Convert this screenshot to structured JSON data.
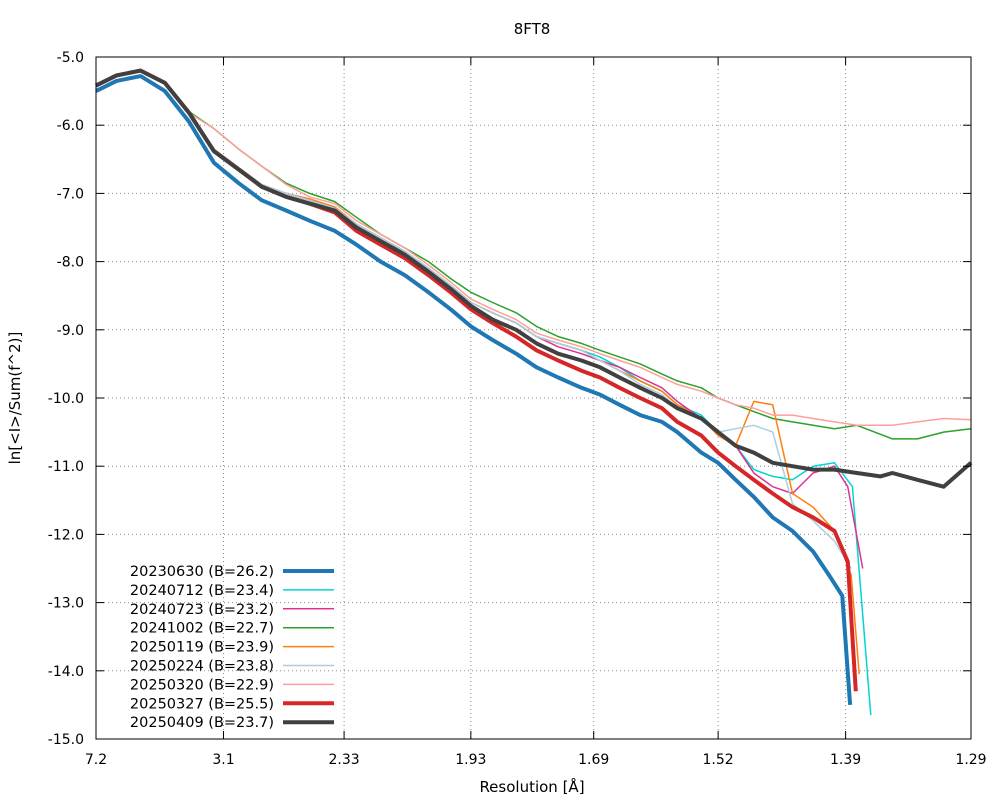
{
  "chart_data": {
    "type": "line",
    "title": "8FT8",
    "xlabel": "Resolution [Å]",
    "ylabel": "ln[<I>/Sum(f^2)]",
    "x_scale": "1/d^2",
    "xlim": [
      7.2,
      1.29
    ],
    "ylim": [
      -15.0,
      -5.0
    ],
    "x_ticks": [
      7.2,
      3.1,
      2.33,
      1.93,
      1.69,
      1.52,
      1.39,
      1.29
    ],
    "x_tick_labels": [
      "7.2",
      "3.1",
      "2.33",
      "1.93",
      "1.69",
      "1.52",
      "1.39",
      "1.29"
    ],
    "y_ticks": [
      -5,
      -6,
      -7,
      -8,
      -9,
      -10,
      -11,
      -12,
      -13,
      -14,
      -15
    ],
    "y_tick_labels": [
      "-5.0",
      "-6.0",
      "-7.0",
      "-8.0",
      "-9.0",
      "-10.0",
      "-11.0",
      "-12.0",
      "-13.0",
      "-14.0",
      "-15.0"
    ],
    "grid": true,
    "legend_position": "bottom-left",
    "series": [
      {
        "name": "20230630 (B=26.2)",
        "color": "#1f77b4",
        "width": 4,
        "x": [
          7.2,
          5.51,
          4.52,
          3.92,
          3.51,
          3.2,
          2.96,
          2.78,
          2.62,
          2.49,
          2.37,
          2.28,
          2.19,
          2.11,
          2.04,
          1.98,
          1.93,
          1.88,
          1.83,
          1.79,
          1.75,
          1.71,
          1.68,
          1.65,
          1.62,
          1.59,
          1.57,
          1.54,
          1.52,
          1.5,
          1.48,
          1.46,
          1.44,
          1.42,
          1.405,
          1.393,
          1.386
        ],
        "y": [
          -5.5,
          -5.35,
          -5.28,
          -5.5,
          -5.95,
          -6.55,
          -6.85,
          -7.1,
          -7.25,
          -7.4,
          -7.55,
          -7.75,
          -8.0,
          -8.2,
          -8.45,
          -8.7,
          -8.95,
          -9.15,
          -9.35,
          -9.55,
          -9.7,
          -9.85,
          -9.95,
          -10.1,
          -10.25,
          -10.35,
          -10.5,
          -10.8,
          -10.95,
          -11.2,
          -11.45,
          -11.75,
          -11.95,
          -12.25,
          -12.6,
          -12.9,
          -14.5
        ]
      },
      {
        "name": "20240712 (B=23.4)",
        "color": "#00d5d5",
        "width": 1.5,
        "x": [
          7.2,
          5.51,
          4.52,
          3.92,
          3.51,
          3.2,
          2.96,
          2.78,
          2.62,
          2.49,
          2.37,
          2.28,
          2.19,
          2.11,
          2.04,
          1.98,
          1.93,
          1.88,
          1.83,
          1.79,
          1.75,
          1.71,
          1.68,
          1.65,
          1.62,
          1.59,
          1.57,
          1.54,
          1.52,
          1.5,
          1.48,
          1.46,
          1.44,
          1.42,
          1.4,
          1.384,
          1.368
        ],
        "y": [
          -5.42,
          -5.27,
          -5.2,
          -5.38,
          -5.82,
          -6.38,
          -6.65,
          -6.9,
          -7.0,
          -7.1,
          -7.25,
          -7.5,
          -7.7,
          -7.85,
          -8.1,
          -8.35,
          -8.6,
          -8.75,
          -8.9,
          -9.1,
          -9.2,
          -9.3,
          -9.4,
          -9.55,
          -9.75,
          -9.9,
          -10.1,
          -10.25,
          -10.5,
          -10.7,
          -11.05,
          -11.15,
          -11.2,
          -11.0,
          -10.95,
          -11.3,
          -14.65
        ]
      },
      {
        "name": "20240723 (B=23.2)",
        "color": "#e0318f",
        "width": 1.5,
        "x": [
          7.2,
          5.51,
          4.52,
          3.92,
          3.51,
          3.2,
          2.96,
          2.78,
          2.62,
          2.49,
          2.37,
          2.28,
          2.19,
          2.11,
          2.04,
          1.98,
          1.93,
          1.88,
          1.83,
          1.79,
          1.75,
          1.71,
          1.68,
          1.65,
          1.62,
          1.59,
          1.57,
          1.54,
          1.52,
          1.5,
          1.48,
          1.46,
          1.44,
          1.42,
          1.4,
          1.388,
          1.375
        ],
        "y": [
          -5.42,
          -5.27,
          -5.2,
          -5.38,
          -5.82,
          -6.38,
          -6.65,
          -6.9,
          -7.0,
          -7.1,
          -7.22,
          -7.45,
          -7.65,
          -7.85,
          -8.1,
          -8.35,
          -8.6,
          -8.75,
          -8.9,
          -9.1,
          -9.25,
          -9.35,
          -9.45,
          -9.55,
          -9.7,
          -9.85,
          -10.05,
          -10.3,
          -10.5,
          -10.7,
          -11.1,
          -11.3,
          -11.4,
          -11.1,
          -11.0,
          -11.3,
          -12.5
        ]
      },
      {
        "name": "20241002 (B=22.7)",
        "color": "#2ca02c",
        "width": 1.5,
        "x": [
          7.2,
          5.51,
          4.52,
          3.92,
          3.51,
          3.2,
          2.96,
          2.78,
          2.62,
          2.49,
          2.37,
          2.28,
          2.19,
          2.11,
          2.04,
          1.98,
          1.93,
          1.88,
          1.83,
          1.79,
          1.75,
          1.71,
          1.68,
          1.65,
          1.62,
          1.59,
          1.57,
          1.54,
          1.52,
          1.5,
          1.48,
          1.46,
          1.44,
          1.42,
          1.4,
          1.38,
          1.35,
          1.33,
          1.31,
          1.29
        ],
        "y": [
          -5.42,
          -5.27,
          -5.2,
          -5.37,
          -5.8,
          -6.05,
          -6.35,
          -6.6,
          -6.85,
          -7.0,
          -7.12,
          -7.35,
          -7.6,
          -7.8,
          -8.0,
          -8.25,
          -8.45,
          -8.6,
          -8.75,
          -8.95,
          -9.1,
          -9.2,
          -9.3,
          -9.4,
          -9.5,
          -9.65,
          -9.75,
          -9.85,
          -10.0,
          -10.1,
          -10.2,
          -10.3,
          -10.35,
          -10.4,
          -10.45,
          -10.4,
          -10.6,
          -10.6,
          -10.5,
          -10.45
        ]
      },
      {
        "name": "20250119 (B=23.9)",
        "color": "#ff7f0e",
        "width": 1.5,
        "x": [
          7.2,
          5.51,
          4.52,
          3.92,
          3.51,
          3.2,
          2.96,
          2.78,
          2.62,
          2.49,
          2.37,
          2.28,
          2.19,
          2.11,
          2.04,
          1.98,
          1.93,
          1.88,
          1.83,
          1.79,
          1.75,
          1.71,
          1.68,
          1.65,
          1.62,
          1.59,
          1.57,
          1.54,
          1.52,
          1.5,
          1.48,
          1.46,
          1.44,
          1.42,
          1.4,
          1.385,
          1.378
        ],
        "y": [
          -5.42,
          -5.27,
          -5.2,
          -5.38,
          -5.82,
          -6.35,
          -6.62,
          -6.87,
          -7.0,
          -7.08,
          -7.2,
          -7.45,
          -7.65,
          -7.85,
          -8.1,
          -8.35,
          -8.6,
          -8.75,
          -8.9,
          -9.1,
          -9.2,
          -9.3,
          -9.45,
          -9.6,
          -9.75,
          -9.9,
          -10.1,
          -10.3,
          -10.55,
          -10.7,
          -10.05,
          -10.1,
          -11.4,
          -11.6,
          -11.95,
          -12.6,
          -14.05
        ]
      },
      {
        "name": "20250224 (B=23.8)",
        "color": "#a9cfe0",
        "width": 1.5,
        "x": [
          7.2,
          5.51,
          4.52,
          3.92,
          3.51,
          3.2,
          2.96,
          2.78,
          2.62,
          2.49,
          2.37,
          2.28,
          2.19,
          2.11,
          2.04,
          1.98,
          1.93,
          1.88,
          1.83,
          1.79,
          1.75,
          1.71,
          1.68,
          1.65,
          1.62,
          1.59,
          1.57,
          1.54,
          1.52,
          1.5,
          1.48,
          1.46,
          1.44,
          1.42,
          1.4,
          1.385
        ],
        "y": [
          -5.42,
          -5.27,
          -5.2,
          -5.38,
          -5.82,
          -6.35,
          -6.62,
          -6.87,
          -7.0,
          -7.1,
          -7.22,
          -7.45,
          -7.65,
          -7.85,
          -8.1,
          -8.35,
          -8.6,
          -8.75,
          -8.9,
          -9.1,
          -9.2,
          -9.3,
          -9.45,
          -9.6,
          -9.8,
          -9.95,
          -10.15,
          -10.3,
          -10.5,
          -10.45,
          -10.4,
          -10.5,
          -11.55,
          -11.8,
          -12.1,
          -12.5
        ]
      },
      {
        "name": "20250320 (B=22.9)",
        "color": "#ff9f9a",
        "width": 1.5,
        "x": [
          7.2,
          5.51,
          4.52,
          3.92,
          3.51,
          3.2,
          2.96,
          2.78,
          2.62,
          2.49,
          2.37,
          2.28,
          2.19,
          2.11,
          2.04,
          1.98,
          1.93,
          1.88,
          1.83,
          1.79,
          1.75,
          1.71,
          1.68,
          1.65,
          1.62,
          1.59,
          1.57,
          1.54,
          1.52,
          1.5,
          1.48,
          1.46,
          1.44,
          1.42,
          1.4,
          1.38,
          1.35,
          1.33,
          1.31,
          1.29
        ],
        "y": [
          -5.42,
          -5.27,
          -5.2,
          -5.38,
          -5.82,
          -6.05,
          -6.35,
          -6.6,
          -6.87,
          -7.05,
          -7.15,
          -7.4,
          -7.6,
          -7.8,
          -8.05,
          -8.3,
          -8.55,
          -8.7,
          -8.85,
          -9.05,
          -9.15,
          -9.25,
          -9.35,
          -9.45,
          -9.55,
          -9.7,
          -9.8,
          -9.9,
          -10.0,
          -10.1,
          -10.15,
          -10.25,
          -10.25,
          -10.3,
          -10.35,
          -10.4,
          -10.4,
          -10.35,
          -10.3,
          -10.32
        ]
      },
      {
        "name": "20250327 (B=25.5)",
        "color": "#d62728",
        "width": 4,
        "x": [
          7.2,
          5.51,
          4.52,
          3.92,
          3.51,
          3.2,
          2.96,
          2.78,
          2.62,
          2.49,
          2.37,
          2.28,
          2.19,
          2.11,
          2.04,
          1.98,
          1.93,
          1.88,
          1.83,
          1.79,
          1.75,
          1.71,
          1.68,
          1.65,
          1.62,
          1.59,
          1.57,
          1.54,
          1.52,
          1.5,
          1.48,
          1.46,
          1.44,
          1.42,
          1.4,
          1.388,
          1.381
        ],
        "y": [
          -5.42,
          -5.27,
          -5.2,
          -5.38,
          -5.82,
          -6.38,
          -6.65,
          -6.9,
          -7.05,
          -7.15,
          -7.28,
          -7.55,
          -7.75,
          -7.95,
          -8.2,
          -8.45,
          -8.7,
          -8.9,
          -9.1,
          -9.3,
          -9.45,
          -9.6,
          -9.7,
          -9.85,
          -10.0,
          -10.15,
          -10.35,
          -10.55,
          -10.8,
          -11.0,
          -11.2,
          -11.4,
          -11.6,
          -11.75,
          -11.95,
          -12.4,
          -14.3
        ]
      },
      {
        "name": "20250409 (B=23.7)",
        "color": "#404040",
        "width": 4,
        "x": [
          7.2,
          5.51,
          4.52,
          3.92,
          3.51,
          3.2,
          2.96,
          2.78,
          2.62,
          2.49,
          2.37,
          2.28,
          2.19,
          2.11,
          2.04,
          1.98,
          1.93,
          1.88,
          1.83,
          1.79,
          1.75,
          1.71,
          1.68,
          1.65,
          1.62,
          1.59,
          1.57,
          1.54,
          1.52,
          1.5,
          1.48,
          1.46,
          1.44,
          1.42,
          1.4,
          1.38,
          1.36,
          1.35,
          1.33,
          1.31,
          1.29
        ],
        "y": [
          -5.42,
          -5.27,
          -5.2,
          -5.38,
          -5.82,
          -6.38,
          -6.65,
          -6.9,
          -7.05,
          -7.15,
          -7.25,
          -7.5,
          -7.7,
          -7.9,
          -8.15,
          -8.4,
          -8.65,
          -8.85,
          -9.0,
          -9.2,
          -9.35,
          -9.45,
          -9.55,
          -9.7,
          -9.85,
          -10.0,
          -10.15,
          -10.3,
          -10.5,
          -10.7,
          -10.8,
          -10.95,
          -11.0,
          -11.05,
          -11.05,
          -11.1,
          -11.15,
          -11.1,
          -11.2,
          -11.3,
          -10.95
        ]
      }
    ]
  }
}
